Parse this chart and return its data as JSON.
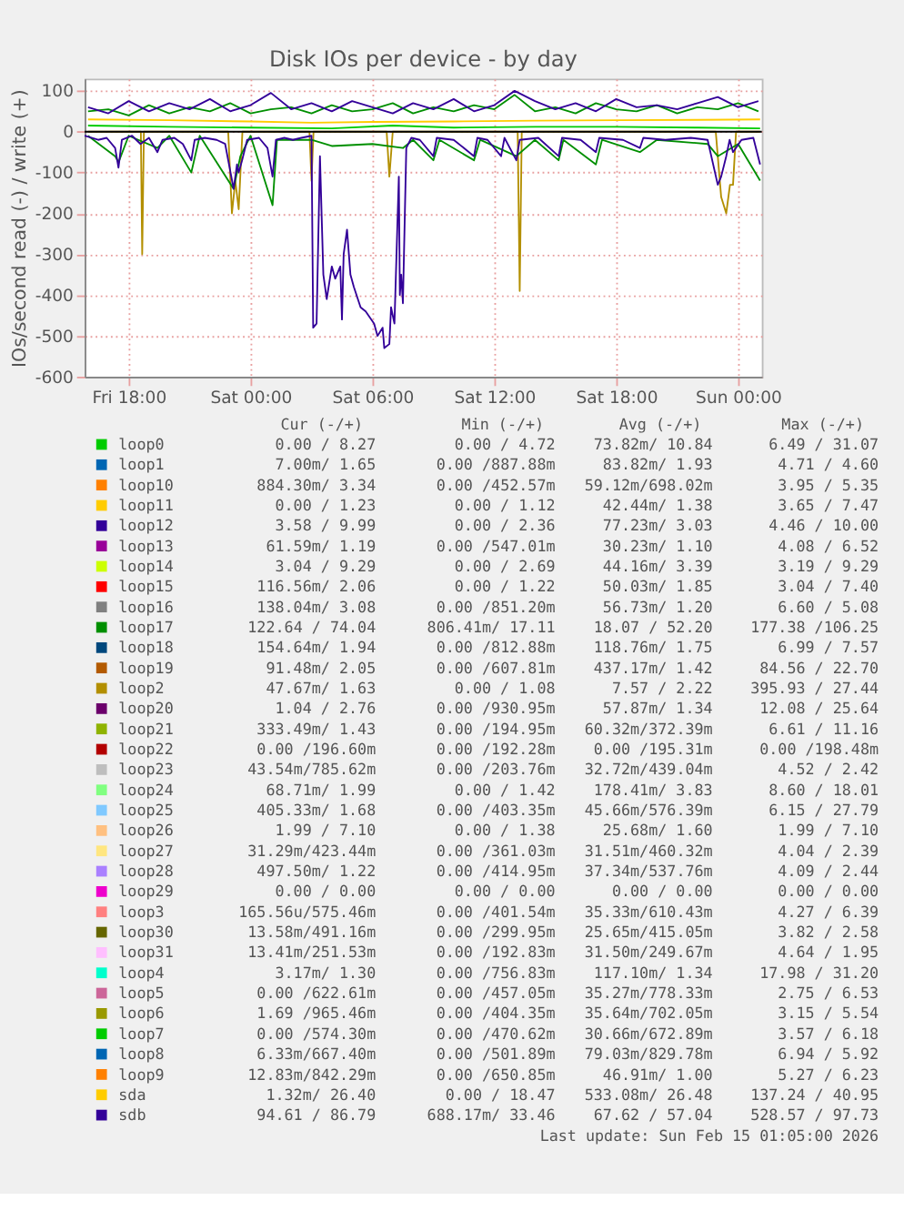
{
  "chart_data": {
    "type": "line",
    "title": "Disk IOs per device - by day",
    "ylabel": "IOs/second read (-) / write (+)",
    "xlim": [
      "2026-02-13T15:50",
      "2026-02-15T01:10"
    ],
    "ylim": [
      -600,
      130
    ],
    "xticks": [
      {
        "value": "2026-02-13T18:00",
        "label": "Fri 18:00"
      },
      {
        "value": "2026-02-14T00:00",
        "label": "Sat 00:00"
      },
      {
        "value": "2026-02-14T06:00",
        "label": "Sat 06:00"
      },
      {
        "value": "2026-02-14T12:00",
        "label": "Sat 12:00"
      },
      {
        "value": "2026-02-14T18:00",
        "label": "Sat 18:00"
      },
      {
        "value": "2026-02-15T00:00",
        "label": "Sun 00:00"
      }
    ],
    "yticks": [
      -600,
      -500,
      -400,
      -300,
      -200,
      -100,
      0,
      100
    ],
    "grid": true,
    "legend": "bottom",
    "line_style": "solid",
    "marker": "none",
    "ref_lines": [
      {
        "axis": "y",
        "value": 0,
        "color": "#000000"
      }
    ],
    "series": [
      {
        "name": "loop0",
        "color": "#00cc00",
        "x": [
          "2026-02-13T16:00",
          "2026-02-13T20:00",
          "2026-02-14T00:00",
          "2026-02-14T04:00",
          "2026-02-14T07:00",
          "2026-02-14T10:00",
          "2026-02-14T14:00",
          "2026-02-14T18:00",
          "2026-02-14T22:00",
          "2026-02-15T01:05"
        ],
        "values": [
          15,
          12,
          10,
          8,
          15,
          10,
          12,
          12,
          10,
          8
        ]
      },
      {
        "name": "loop1",
        "color": "#0066b3",
        "values": [
          null
        ]
      },
      {
        "name": "loop10",
        "color": "#ff8000",
        "values": [
          null
        ]
      },
      {
        "name": "loop11",
        "color": "#ffcc00",
        "values": [
          null
        ]
      },
      {
        "name": "loop12",
        "color": "#330099",
        "values": [
          null
        ]
      },
      {
        "name": "loop13",
        "color": "#990099",
        "values": [
          null
        ]
      },
      {
        "name": "loop14",
        "color": "#ccff00",
        "values": [
          null
        ]
      },
      {
        "name": "loop15",
        "color": "#ff0000",
        "values": [
          null
        ]
      },
      {
        "name": "loop16",
        "color": "#808080",
        "values": [
          null
        ]
      },
      {
        "name": "loop17",
        "color": "#008f00",
        "x": [
          "2026-02-13T16:00",
          "2026-02-13T17:00",
          "2026-02-13T18:00",
          "2026-02-13T19:00",
          "2026-02-13T20:00",
          "2026-02-13T21:00",
          "2026-02-13T22:00",
          "2026-02-13T23:00",
          "2026-02-14T00:00",
          "2026-02-14T01:00",
          "2026-02-14T02:00",
          "2026-02-14T03:00",
          "2026-02-14T04:00",
          "2026-02-14T05:00",
          "2026-02-14T06:00",
          "2026-02-14T07:00",
          "2026-02-14T08:00",
          "2026-02-14T09:00",
          "2026-02-14T10:00",
          "2026-02-14T11:00",
          "2026-02-14T12:00",
          "2026-02-14T13:00",
          "2026-02-14T14:00",
          "2026-02-14T15:00",
          "2026-02-14T16:00",
          "2026-02-14T17:00",
          "2026-02-14T18:00",
          "2026-02-14T19:00",
          "2026-02-14T20:00",
          "2026-02-14T21:00",
          "2026-02-14T22:00",
          "2026-02-14T23:00",
          "2026-02-15T00:00",
          "2026-02-15T01:00"
        ],
        "values": [
          50,
          55,
          40,
          65,
          45,
          60,
          50,
          70,
          45,
          55,
          60,
          45,
          65,
          50,
          55,
          70,
          45,
          60,
          50,
          65,
          55,
          90,
          50,
          60,
          45,
          70,
          55,
          50,
          65,
          45,
          60,
          55,
          70,
          50
        ]
      },
      {
        "name": "loop18",
        "color": "#00487d",
        "values": [
          null
        ]
      },
      {
        "name": "loop19",
        "color": "#b35a00",
        "values": [
          null
        ]
      },
      {
        "name": "loop2",
        "color": "#b38f00",
        "x": [
          "2026-02-13T16:00",
          "2026-02-13T18:36",
          "2026-02-13T18:40",
          "2026-02-13T18:45",
          "2026-02-13T22:54",
          "2026-02-13T23:05",
          "2026-02-13T23:15",
          "2026-02-13T23:25",
          "2026-02-13T23:36",
          "2026-02-14T02:54",
          "2026-02-14T03:00",
          "2026-02-14T03:06",
          "2026-02-14T06:42",
          "2026-02-14T06:50",
          "2026-02-14T07:00",
          "2026-02-14T13:09",
          "2026-02-14T13:15",
          "2026-02-14T13:21",
          "2026-02-14T22:54",
          "2026-02-14T23:10",
          "2026-02-14T23:25",
          "2026-02-14T23:36",
          "2026-02-14T23:45",
          "2026-02-14T23:54",
          "2026-02-15T01:05"
        ],
        "values": [
          0,
          0,
          -300,
          0,
          0,
          -200,
          -120,
          -190,
          0,
          0,
          -120,
          0,
          0,
          -110,
          0,
          0,
          -390,
          0,
          0,
          -160,
          -200,
          -130,
          -130,
          0,
          0
        ]
      },
      {
        "name": "loop20",
        "color": "#6b006b",
        "values": [
          null
        ]
      },
      {
        "name": "loop21",
        "color": "#8fb300",
        "values": [
          null
        ]
      },
      {
        "name": "loop22",
        "color": "#b30000",
        "values": [
          null
        ]
      },
      {
        "name": "loop23",
        "color": "#bebebe",
        "values": [
          null
        ]
      },
      {
        "name": "loop24",
        "color": "#80ff80",
        "values": [
          null
        ]
      },
      {
        "name": "loop25",
        "color": "#80c9ff",
        "values": [
          null
        ]
      },
      {
        "name": "loop26",
        "color": "#ffc080",
        "values": [
          null
        ]
      },
      {
        "name": "loop27",
        "color": "#ffe680",
        "values": [
          null
        ]
      },
      {
        "name": "loop28",
        "color": "#aa80ff",
        "values": [
          null
        ]
      },
      {
        "name": "loop29",
        "color": "#ee00cc",
        "values": [
          null
        ]
      },
      {
        "name": "loop3",
        "color": "#ff8080",
        "values": [
          null
        ]
      },
      {
        "name": "loop30",
        "color": "#666600",
        "values": [
          null
        ]
      },
      {
        "name": "loop31",
        "color": "#ffbfff",
        "values": [
          null
        ]
      },
      {
        "name": "loop4",
        "color": "#00ffcc",
        "values": [
          null
        ]
      },
      {
        "name": "loop5",
        "color": "#cc6699",
        "values": [
          null
        ]
      },
      {
        "name": "loop6",
        "color": "#999900",
        "values": [
          null
        ]
      },
      {
        "name": "loop7",
        "color": "#00cc00",
        "values": [
          null
        ]
      },
      {
        "name": "loop8",
        "color": "#0066b3",
        "values": [
          null
        ]
      },
      {
        "name": "loop9",
        "color": "#ff8000",
        "values": [
          null
        ]
      },
      {
        "name": "sda",
        "color": "#ffcc00",
        "x": [
          "2026-02-13T16:00",
          "2026-02-13T20:00",
          "2026-02-14T00:00",
          "2026-02-14T03:00",
          "2026-02-14T06:00",
          "2026-02-14T10:00",
          "2026-02-14T14:00",
          "2026-02-14T18:00",
          "2026-02-14T22:00",
          "2026-02-15T01:05"
        ],
        "values": [
          30,
          28,
          25,
          22,
          24,
          25,
          27,
          28,
          29,
          30
        ]
      },
      {
        "name": "sdb",
        "color": "#330099",
        "x": [
          "2026-02-13T16:00",
          "2026-02-13T17:00",
          "2026-02-13T18:00",
          "2026-02-13T19:00",
          "2026-02-13T20:00",
          "2026-02-13T21:00",
          "2026-02-13T22:00",
          "2026-02-13T23:00",
          "2026-02-14T00:00",
          "2026-02-14T01:00",
          "2026-02-14T02:00",
          "2026-02-14T03:00",
          "2026-02-14T04:00",
          "2026-02-14T05:00",
          "2026-02-14T06:00",
          "2026-02-14T07:00",
          "2026-02-14T08:00",
          "2026-02-14T09:00",
          "2026-02-14T10:00",
          "2026-02-14T11:00",
          "2026-02-14T12:00",
          "2026-02-14T13:00",
          "2026-02-14T14:00",
          "2026-02-14T15:00",
          "2026-02-14T16:00",
          "2026-02-14T17:00",
          "2026-02-14T18:00",
          "2026-02-14T19:00",
          "2026-02-14T20:00",
          "2026-02-14T21:00",
          "2026-02-14T22:00",
          "2026-02-14T23:00",
          "2026-02-15T00:00",
          "2026-02-15T01:00"
        ],
        "values": [
          60,
          45,
          75,
          50,
          70,
          55,
          80,
          50,
          65,
          95,
          55,
          70,
          50,
          75,
          60,
          45,
          70,
          55,
          80,
          50,
          65,
          100,
          75,
          55,
          70,
          50,
          80,
          60,
          65,
          55,
          70,
          85,
          60,
          75
        ]
      },
      {
        "color": "#008f00",
        "x": [
          "2026-02-13T16:00",
          "2026-02-13T17:20",
          "2026-02-13T17:30",
          "2026-02-13T18:00",
          "2026-02-13T19:25",
          "2026-02-13T20:00",
          "2026-02-13T21:05",
          "2026-02-13T21:30",
          "2026-02-13T23:10",
          "2026-02-13T23:30",
          "2026-02-14T00:00",
          "2026-02-14T01:05",
          "2026-02-14T01:18",
          "2026-02-14T03:00",
          "2026-02-14T04:00",
          "2026-02-14T06:00",
          "2026-02-14T07:30",
          "2026-02-14T08:00",
          "2026-02-14T09:00",
          "2026-02-14T09:18",
          "2026-02-14T11:00",
          "2026-02-14T11:18",
          "2026-02-14T13:05",
          "2026-02-14T14:00",
          "2026-02-14T15:10",
          "2026-02-14T15:24",
          "2026-02-14T17:00",
          "2026-02-14T17:18",
          "2026-02-14T19:10",
          "2026-02-14T20:00",
          "2026-02-14T22:30",
          "2026-02-14T23:00",
          "2026-02-15T00:00",
          "2026-02-15T01:05"
        ],
        "values": [
          -10,
          -60,
          -75,
          -10,
          -40,
          -10,
          -100,
          -10,
          -140,
          -60,
          -10,
          -180,
          -20,
          -20,
          -35,
          -30,
          -40,
          -20,
          -70,
          -20,
          -70,
          -20,
          -60,
          -20,
          -70,
          -20,
          -80,
          -20,
          -50,
          -20,
          -30,
          -60,
          -30,
          -120
        ]
      },
      {
        "color": "#330099",
        "x": [
          "2026-02-13T15:50",
          "2026-02-13T16:30",
          "2026-02-13T16:55",
          "2026-02-13T17:20",
          "2026-02-13T17:30",
          "2026-02-13T17:40",
          "2026-02-13T18:10",
          "2026-02-13T18:35",
          "2026-02-13T19:00",
          "2026-02-13T19:25",
          "2026-02-13T19:40",
          "2026-02-13T20:15",
          "2026-02-13T20:40",
          "2026-02-13T21:05",
          "2026-02-13T21:15",
          "2026-02-13T21:45",
          "2026-02-13T22:20",
          "2026-02-13T22:45",
          "2026-02-13T23:10",
          "2026-02-13T23:20",
          "2026-02-13T23:25",
          "2026-02-13T23:35",
          "2026-02-13T23:50",
          "2026-02-14T00:25",
          "2026-02-14T00:50",
          "2026-02-14T01:05",
          "2026-02-14T01:15",
          "2026-02-14T01:40",
          "2026-02-14T02:05",
          "2026-02-14T02:30",
          "2026-02-14T03:00",
          "2026-02-14T03:05",
          "2026-02-14T03:15",
          "2026-02-14T03:25",
          "2026-02-14T03:35",
          "2026-02-14T03:45",
          "2026-02-14T04:00",
          "2026-02-14T04:10",
          "2026-02-14T04:25",
          "2026-02-14T04:30",
          "2026-02-14T04:35",
          "2026-02-14T04:45",
          "2026-02-14T04:55",
          "2026-02-14T05:05",
          "2026-02-14T05:25",
          "2026-02-14T05:40",
          "2026-02-14T06:05",
          "2026-02-14T06:15",
          "2026-02-14T06:30",
          "2026-02-14T06:35",
          "2026-02-14T06:50",
          "2026-02-14T06:55",
          "2026-02-14T07:05",
          "2026-02-14T07:18",
          "2026-02-14T07:21",
          "2026-02-14T07:25",
          "2026-02-14T07:30",
          "2026-02-14T07:40",
          "2026-02-14T07:55",
          "2026-02-14T08:20",
          "2026-02-14T09:00",
          "2026-02-14T09:10",
          "2026-02-14T10:00",
          "2026-02-14T11:00",
          "2026-02-14T11:10",
          "2026-02-14T11:40",
          "2026-02-14T12:20",
          "2026-02-14T12:30",
          "2026-02-14T13:05",
          "2026-02-14T13:15",
          "2026-02-14T14:10",
          "2026-02-14T15:10",
          "2026-02-14T15:20",
          "2026-02-14T16:15",
          "2026-02-14T17:00",
          "2026-02-14T17:10",
          "2026-02-14T18:20",
          "2026-02-14T19:10",
          "2026-02-14T19:20",
          "2026-02-14T20:25",
          "2026-02-14T21:40",
          "2026-02-14T22:30",
          "2026-02-14T23:00",
          "2026-02-14T23:10",
          "2026-02-14T23:25",
          "2026-02-14T23:35",
          "2026-02-14T23:45",
          "2026-02-15T00:10",
          "2026-02-15T00:45",
          "2026-02-15T01:05"
        ],
        "values": [
          -10,
          -20,
          -15,
          -40,
          -88,
          -20,
          -10,
          -30,
          -15,
          -50,
          -20,
          -15,
          -30,
          -70,
          -20,
          -15,
          -20,
          -30,
          -140,
          -80,
          -100,
          -70,
          -20,
          -15,
          -40,
          -110,
          -20,
          -15,
          -20,
          -15,
          -10,
          -480,
          -470,
          -60,
          -350,
          -410,
          -330,
          -360,
          -330,
          -460,
          -300,
          -240,
          -350,
          -380,
          -430,
          -440,
          -470,
          -500,
          -480,
          -530,
          -520,
          -430,
          -470,
          -110,
          -400,
          -350,
          -420,
          -40,
          -15,
          -20,
          -60,
          -15,
          -20,
          -60,
          -15,
          -20,
          -60,
          -15,
          -70,
          -20,
          -15,
          -60,
          -15,
          -20,
          -50,
          -15,
          -20,
          -40,
          -15,
          -20,
          -15,
          -20,
          -130,
          -110,
          -60,
          -20,
          -50,
          -20,
          -15,
          -80
        ]
      }
    ],
    "annotations": [
      "Cur (-/+)",
      "Min (-/+)",
      "Avg (-/+)",
      "Max (-/+)",
      "0.00 / 8.27",
      "0.00 / 4.72",
      "73.82m/ 10.84",
      "6.49 / 31.07",
      "7.00m/ 1.65",
      "0.00 /887.88m",
      "83.82m/ 1.93",
      "4.71 / 4.60",
      "884.30m/ 3.34",
      "0.00 /452.57m",
      "59.12m/698.02m",
      "3.95 / 5.35",
      "0.00 / 1.23",
      "0.00 / 1.12",
      "42.44m/ 1.38",
      "3.65 / 7.47",
      "3.58 / 9.99",
      "0.00 / 2.36",
      "77.23m/ 3.03",
      "4.46 / 10.00",
      "61.59m/ 1.19",
      "0.00 /547.01m",
      "30.23m/ 1.10",
      "4.08 / 6.52",
      "3.04 / 9.29",
      "0.00 / 2.69",
      "44.16m/ 3.39",
      "3.19 / 9.29",
      "116.56m/ 2.06",
      "0.00 / 1.22",
      "50.03m/ 1.85",
      "3.04 / 7.40",
      "138.04m/ 3.08",
      "0.00 /851.20m",
      "56.73m/ 1.20",
      "6.60 / 5.08",
      "122.64 / 74.04",
      "806.41m/ 17.11",
      "18.07 / 52.20",
      "177.38 /106.25",
      "154.64m/ 1.94",
      "0.00 /812.88m",
      "118.76m/ 1.75",
      "6.99 / 7.57",
      "91.48m/ 2.05",
      "0.00 /607.81m",
      "437.17m/ 1.42",
      "84.56 / 22.70",
      "47.67m/ 1.63",
      "0.00 / 1.08",
      "7.57 / 2.22",
      "395.93 / 27.44",
      "1.04 / 2.76",
      "0.00 /930.95m",
      "57.87m/ 1.34",
      "12.08 / 25.64",
      "333.49m/ 1.43",
      "0.00 /194.95m",
      "60.32m/372.39m",
      "6.61 / 11.16",
      "0.00 /196.60m",
      "0.00 /192.28m",
      "0.00 /195.31m",
      "0.00 /198.48m",
      "43.54m/785.62m",
      "0.00 /203.76m",
      "32.72m/439.04m",
      "4.52 / 2.42",
      "68.71m/ 1.99",
      "0.00 / 1.42",
      "178.41m/ 3.83",
      "8.60 / 18.01",
      "405.33m/ 1.68",
      "0.00 /403.35m",
      "45.66m/576.39m",
      "6.15 / 27.79",
      "1.99 / 7.10",
      "0.00 / 1.38",
      "25.68m/ 1.60",
      "1.99 / 7.10",
      "31.29m/423.44m",
      "0.00 /361.03m",
      "31.51m/460.32m",
      "4.04 / 2.39",
      "497.50m/ 1.22",
      "0.00 /414.95m",
      "37.34m/537.76m",
      "4.09 / 2.44",
      "0.00 / 0.00",
      "0.00 / 0.00",
      "0.00 / 0.00",
      "0.00 / 0.00",
      "165.56u/575.46m",
      "0.00 /401.54m",
      "35.33m/610.43m",
      "4.27 / 6.39",
      "13.58m/491.16m",
      "0.00 /299.95m",
      "25.65m/415.05m",
      "3.82 / 2.58",
      "13.41m/251.53m",
      "0.00 /192.83m",
      "31.50m/249.67m",
      "4.64 / 1.95",
      "3.17m/ 1.30",
      "0.00 /756.83m",
      "117.10m/ 1.34",
      "17.98 / 31.20",
      "0.00 /622.61m",
      "0.00 /457.05m",
      "35.27m/778.33m",
      "2.75 / 6.53",
      "1.69 /965.46m",
      "0.00 /404.35m",
      "35.64m/702.05m",
      "3.15 / 5.54",
      "0.00 /574.30m",
      "0.00 /470.62m",
      "30.66m/672.89m",
      "3.57 / 6.18",
      "6.33m/667.40m",
      "0.00 /501.89m",
      "79.03m/829.78m",
      "6.94 / 5.92",
      "12.83m/842.29m",
      "0.00 /650.85m",
      "46.91m/ 1.00",
      "5.27 / 6.23",
      "1.32m/ 26.40",
      "0.00 / 18.47",
      "533.08m/ 26.48",
      "137.24 / 40.95",
      "94.61 / 86.79",
      "688.17m/ 33.46",
      "67.62 / 57.04",
      "528.57 / 97.73",
      "Last update: Sun Feb 15 01:05:00 2026"
    ]
  }
}
